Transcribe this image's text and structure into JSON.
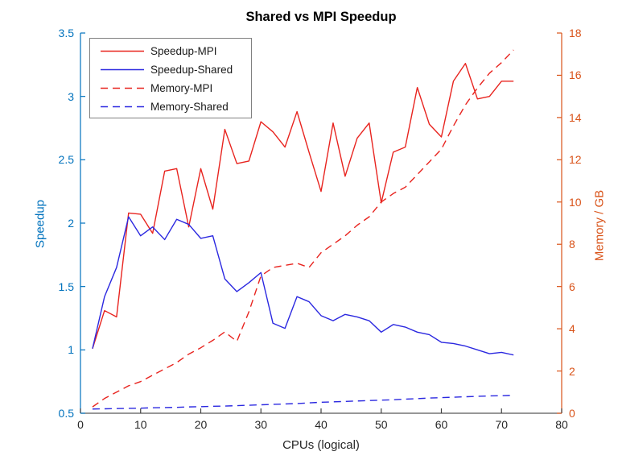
{
  "title": "Shared vs MPI Speedup",
  "axes": {
    "x": {
      "label": "CPUs (logical)",
      "ticks": [
        0,
        10,
        20,
        30,
        40,
        50,
        60,
        70,
        80
      ],
      "color": "#595959",
      "text_color": "#262626"
    },
    "y_left": {
      "label": "Speedup",
      "ticks": [
        0.5,
        1,
        1.5,
        2,
        2.5,
        3,
        3.5
      ],
      "color": "#0072BD"
    },
    "y_right": {
      "label": "Memory / GB",
      "ticks": [
        0,
        2,
        4,
        6,
        8,
        10,
        12,
        14,
        16,
        18
      ],
      "color": "#D95319"
    }
  },
  "legend": {
    "items": [
      {
        "label": "Speedup-MPI"
      },
      {
        "label": "Speedup-Shared"
      },
      {
        "label": "Memory-MPI"
      },
      {
        "label": "Memory-Shared"
      }
    ]
  },
  "chart_data": {
    "type": "line",
    "title": "Shared vs MPI Speedup",
    "xlabel": "CPUs (logical)",
    "ylabel_left": "Speedup",
    "ylabel_right": "Memory / GB",
    "xlim": [
      0,
      80
    ],
    "ylim_left": [
      0.5,
      3.5
    ],
    "ylim_right": [
      0,
      18
    ],
    "grid": false,
    "legend_position": "upper-left",
    "x": [
      2,
      4,
      6,
      8,
      10,
      12,
      14,
      16,
      18,
      20,
      22,
      24,
      26,
      28,
      30,
      32,
      34,
      36,
      38,
      40,
      42,
      44,
      46,
      48,
      50,
      52,
      54,
      56,
      58,
      60,
      62,
      64,
      66,
      68,
      70,
      72
    ],
    "series": [
      {
        "name": "Speedup-MPI",
        "axis": "left",
        "style": "solid",
        "color": "#e8241f",
        "values": [
          1.01,
          1.31,
          1.26,
          2.08,
          2.07,
          1.92,
          2.41,
          2.43,
          1.97,
          2.43,
          2.11,
          2.74,
          2.47,
          2.49,
          2.8,
          2.72,
          2.6,
          2.88,
          2.56,
          2.25,
          2.79,
          2.37,
          2.67,
          2.79,
          2.16,
          2.56,
          2.6,
          3.07,
          2.78,
          2.68,
          3.12,
          3.26,
          2.98,
          3.0,
          3.12,
          3.12
        ]
      },
      {
        "name": "Speedup-Shared",
        "axis": "left",
        "style": "solid",
        "color": "#2b28e0",
        "values": [
          1.01,
          1.42,
          1.65,
          2.05,
          1.9,
          1.97,
          1.87,
          2.03,
          1.99,
          1.88,
          1.9,
          1.56,
          1.46,
          1.53,
          1.61,
          1.21,
          1.17,
          1.42,
          1.38,
          1.27,
          1.23,
          1.28,
          1.26,
          1.23,
          1.14,
          1.2,
          1.18,
          1.14,
          1.12,
          1.06,
          1.05,
          1.03,
          1.0,
          0.97,
          0.98,
          0.96
        ]
      },
      {
        "name": "Memory-MPI",
        "axis": "right",
        "style": "dashed",
        "color": "#e8241f",
        "values": [
          0.3,
          0.7,
          1.0,
          1.3,
          1.5,
          1.8,
          2.1,
          2.4,
          2.8,
          3.1,
          3.45,
          3.85,
          3.4,
          4.8,
          6.5,
          6.9,
          7.0,
          7.1,
          6.9,
          7.6,
          8.0,
          8.4,
          8.9,
          9.3,
          10.0,
          10.4,
          10.7,
          11.3,
          11.9,
          12.5,
          13.6,
          14.6,
          15.4,
          16.1,
          16.6,
          17.2
        ]
      },
      {
        "name": "Memory-Shared",
        "axis": "right",
        "style": "dashed",
        "color": "#2b28e0",
        "values": [
          0.2,
          0.21,
          0.22,
          0.23,
          0.24,
          0.26,
          0.27,
          0.28,
          0.3,
          0.31,
          0.33,
          0.34,
          0.36,
          0.38,
          0.4,
          0.42,
          0.44,
          0.46,
          0.49,
          0.52,
          0.54,
          0.56,
          0.58,
          0.6,
          0.62,
          0.64,
          0.67,
          0.69,
          0.72,
          0.74,
          0.76,
          0.78,
          0.8,
          0.82,
          0.83,
          0.85
        ]
      }
    ]
  }
}
